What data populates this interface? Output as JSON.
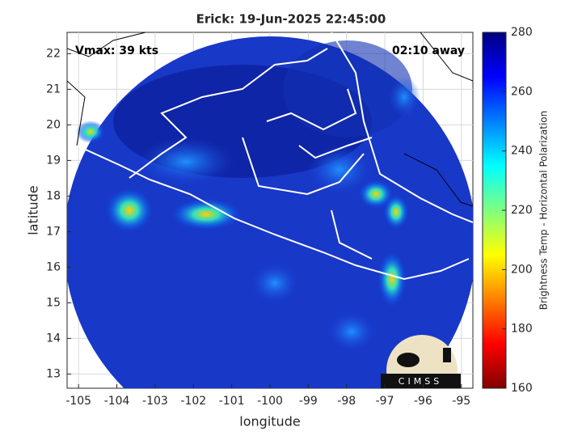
{
  "chart_data": {
    "type": "map",
    "title": "Erick: 19-Jun-2025 22:45:00",
    "annotations": [
      "Vmax: 39 kts",
      "02:10 away"
    ],
    "x_label": "longitude",
    "y_label": "latitude",
    "xlim": [
      -105.3,
      -94.7
    ],
    "xticks": [
      -105,
      -104,
      -103,
      -102,
      -101,
      -100,
      -99,
      -98,
      -97,
      -96,
      -95
    ],
    "ylim": [
      12.6,
      22.6
    ],
    "yticks": [
      13,
      14,
      15,
      16,
      17,
      18,
      19,
      20,
      21,
      22
    ],
    "grid": true,
    "colorbar": {
      "label": "Brightness Temp - Horizontal Polarization",
      "lim": [
        160,
        280
      ],
      "ticks": [
        160,
        180,
        200,
        220,
        240,
        260,
        280
      ]
    },
    "logo": "CIMSS"
  }
}
